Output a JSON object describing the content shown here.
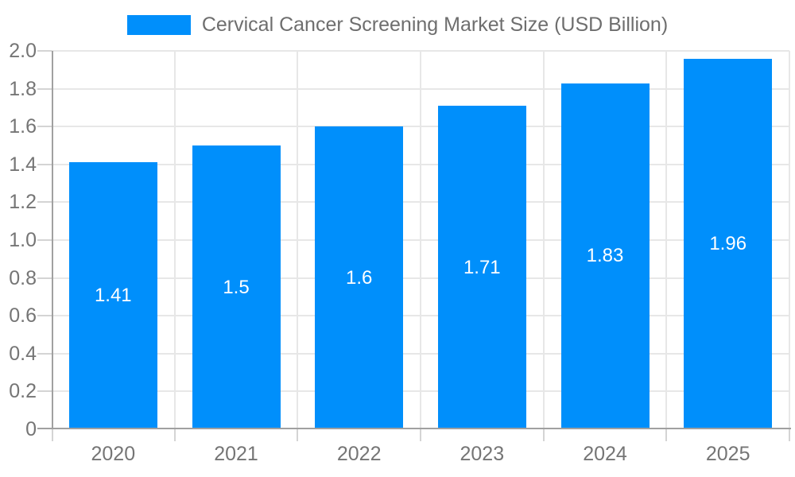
{
  "legend": {
    "label": "Cervical Cancer Screening Market Size (USD Billion)",
    "position": "top"
  },
  "colors": {
    "bar": "#008FFB",
    "grid": "#e7e7e7",
    "tick": "#d4d4d4",
    "axis": "#a0a0a0",
    "label": "#757575",
    "legend_text": "#6e6e6e",
    "value_label": "#ffffff",
    "background": "#ffffff"
  },
  "chart_data": {
    "type": "bar",
    "title": "Cervical Cancer Screening Market Size (USD Billion)",
    "categories": [
      "2020",
      "2021",
      "2022",
      "2023",
      "2024",
      "2025"
    ],
    "values": [
      1.41,
      1.5,
      1.6,
      1.71,
      1.83,
      1.96
    ],
    "value_labels": [
      "1.41",
      "1.5",
      "1.6",
      "1.71",
      "1.83",
      "1.96"
    ],
    "xlabel": "",
    "ylabel": "",
    "ylim": [
      0,
      2.0
    ],
    "ytick_values": [
      0,
      0.2,
      0.4,
      0.6,
      0.8,
      1.0,
      1.2,
      1.4,
      1.6,
      1.8,
      2.0
    ],
    "ytick_labels": [
      "0",
      "0.2",
      "0.4",
      "0.6",
      "0.8",
      "1.0",
      "1.2",
      "1.4",
      "1.6",
      "1.8",
      "2.0"
    ],
    "grid": true,
    "legend_position": "top",
    "value_label_position": "center-of-bar"
  }
}
